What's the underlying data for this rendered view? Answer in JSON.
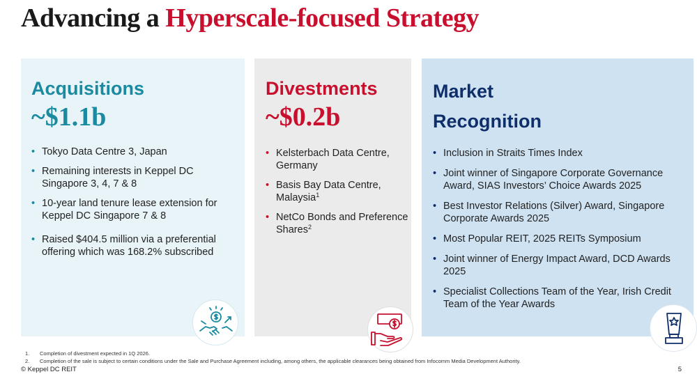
{
  "title": {
    "part1": "Advancing a ",
    "part2": "Hyperscale-focused Strategy"
  },
  "acquisitions": {
    "heading": "Acquisitions",
    "amount": "~$1.1b",
    "items": [
      "Tokyo Data Centre 3, Japan",
      "Remaining interests in Keppel DC Singapore 3, 4, 7 & 8",
      "10-year land tenure lease extension for Keppel DC Singapore 7 & 8",
      "Raised $404.5 million via a preferential offering which was 168.2% subscribed"
    ],
    "icon": "handshake-dollar-icon"
  },
  "divestments": {
    "heading": "Divestments",
    "amount": "~$0.2b",
    "items": [
      {
        "text": "Kelsterbach Data Centre, Germany",
        "sup": ""
      },
      {
        "text": "Basis Bay Data Centre, Malaysia",
        "sup": "1"
      },
      {
        "text": "NetCo Bonds and Preference Shares",
        "sup": "2"
      }
    ],
    "icon": "hand-money-icon"
  },
  "market_recognition": {
    "heading": "Market Recognition",
    "items": [
      "Inclusion in Straits Times Index",
      "Joint winner of Singapore Corporate Governance Award, SIAS Investors’ Choice Awards 2025",
      "Best Investor Relations (Silver) Award, Singapore Corporate Awards 2025",
      "Most Popular REIT, 2025 REITs Symposium",
      "Joint winner of Energy Impact Award, DCD Awards 2025",
      "Specialist Collections Team of the Year, Irish Credit Team of the Year Awards"
    ],
    "icon": "trophy-star-icon"
  },
  "footnotes": [
    {
      "num": "1.",
      "text": "Completion of divestment expected in 1Q 2026."
    },
    {
      "num": "2.",
      "text": "Completion of the sale is subject to certain conditions under the Sale and Purchase Agreement including, among others, the applicable clearances being obtained from Infocomm Media Development Authority."
    }
  ],
  "copyright": "© Keppel DC REIT",
  "page_number": "5",
  "colors": {
    "teal": "#1a8aa0",
    "red": "#c8102e",
    "navy": "#0f2f6b"
  }
}
